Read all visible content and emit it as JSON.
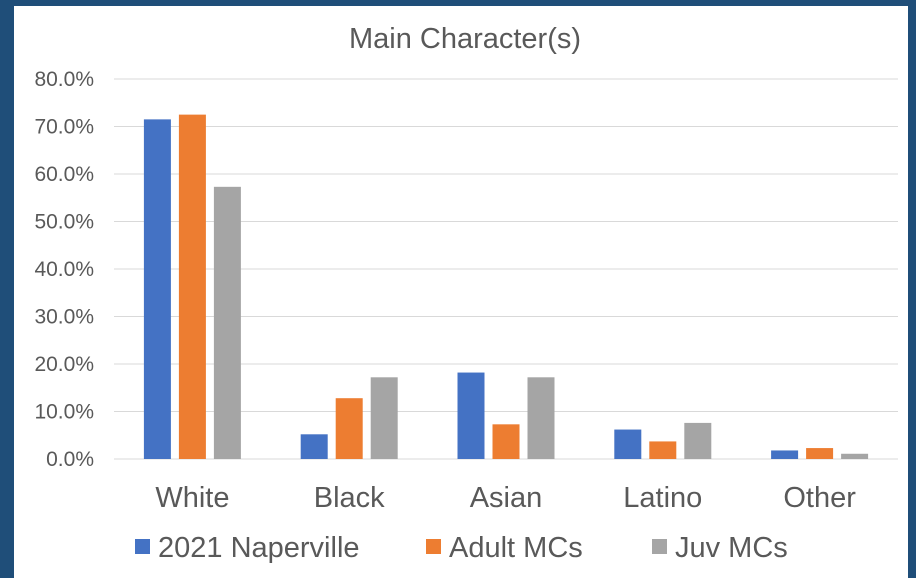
{
  "chart_data": {
    "type": "bar",
    "title": "Main Character(s)",
    "xlabel": "",
    "ylabel": "",
    "categories": [
      "White",
      "Black",
      "Asian",
      "Latino",
      "Other"
    ],
    "series": [
      {
        "name": "2021 Naperville",
        "color": "#4472c4",
        "values": [
          71.5,
          5.2,
          18.2,
          6.2,
          1.8
        ]
      },
      {
        "name": "Adult MCs",
        "color": "#ed7d31",
        "values": [
          72.5,
          12.8,
          7.3,
          3.7,
          2.3
        ]
      },
      {
        "name": "Juv MCs",
        "color": "#a5a5a5",
        "values": [
          57.3,
          17.2,
          17.2,
          7.6,
          1.1
        ]
      }
    ],
    "ylim": [
      0,
      80
    ],
    "yticks": [
      "0.0%",
      "10.0%",
      "20.0%",
      "30.0%",
      "40.0%",
      "50.0%",
      "60.0%",
      "70.0%",
      "80.0%"
    ],
    "grid": true,
    "legend": "bottom"
  }
}
